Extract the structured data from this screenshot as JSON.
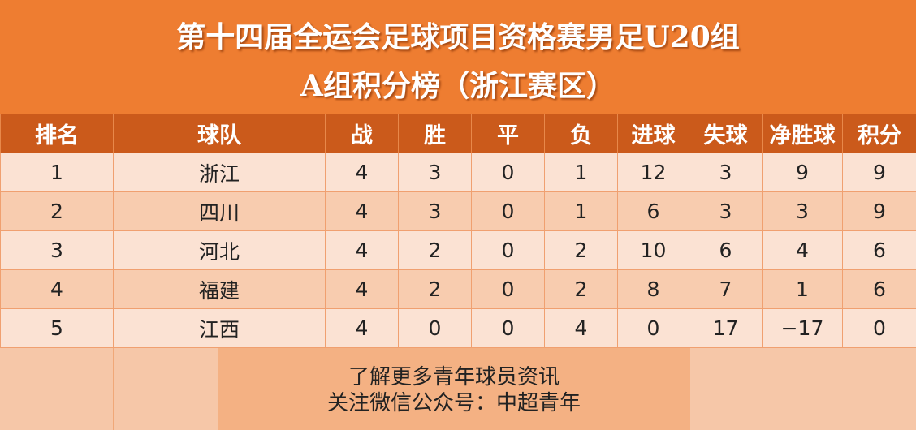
{
  "title": {
    "line1": "第十四届全运会足球项目资格赛男足U20组",
    "line2": "A组积分榜（浙江赛区）"
  },
  "table": {
    "headers": [
      "排名",
      "球队",
      "战",
      "胜",
      "平",
      "负",
      "进球",
      "失球",
      "净胜球",
      "积分"
    ],
    "rows": [
      [
        "1",
        "浙江",
        "4",
        "3",
        "0",
        "1",
        "12",
        "3",
        "9",
        "9"
      ],
      [
        "2",
        "四川",
        "4",
        "3",
        "0",
        "1",
        "6",
        "3",
        "3",
        "9"
      ],
      [
        "3",
        "河北",
        "4",
        "2",
        "0",
        "2",
        "10",
        "6",
        "4",
        "6"
      ],
      [
        "4",
        "福建",
        "4",
        "2",
        "0",
        "2",
        "8",
        "7",
        "1",
        "6"
      ],
      [
        "5",
        "江西",
        "4",
        "0",
        "0",
        "4",
        "0",
        "17",
        "−17",
        "0"
      ]
    ]
  },
  "footer": {
    "line1": "了解更多青年球员资讯",
    "line2": "关注微信公众号：中超青年"
  },
  "colors": {
    "title_bg": "#ee7d31",
    "header_bg": "#cb5a1b",
    "row_odd": "#fbe2d3",
    "row_even": "#f8ccaf",
    "footer_mid": "#f4b183"
  }
}
